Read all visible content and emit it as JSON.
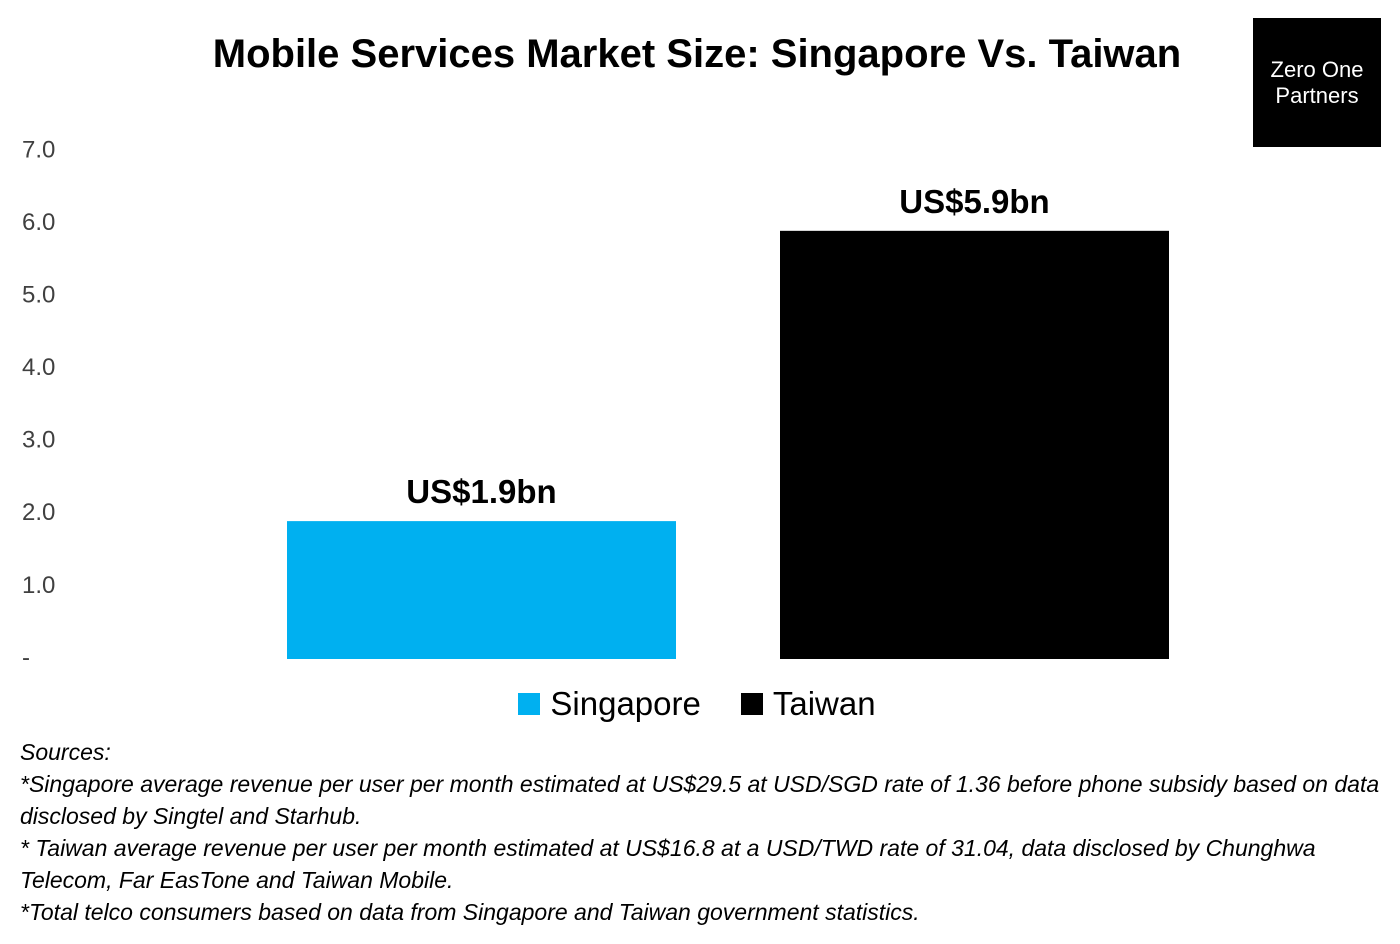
{
  "chart_data": {
    "type": "bar",
    "title": "Mobile Services Market Size: Singapore Vs. Taiwan",
    "categories": [
      "Singapore",
      "Taiwan"
    ],
    "values": [
      1.9,
      5.9
    ],
    "data_labels": [
      "US$1.9bn",
      "US$5.9bn"
    ],
    "colors": [
      "#00B0F0",
      "#000000"
    ],
    "ylim": [
      0,
      7
    ],
    "yticks": [
      0,
      1,
      2,
      3,
      4,
      5,
      6,
      7
    ],
    "ytick_labels": [
      "-",
      "1.0",
      "2.0",
      "3.0",
      "4.0",
      "5.0",
      "6.0",
      "7.0"
    ],
    "xlabel": "",
    "ylabel": "",
    "grid": false,
    "legend": "bottom-center",
    "legend_entries": [
      "Singapore",
      "Taiwan"
    ]
  },
  "logo": {
    "line1": "Zero One",
    "line2": "Partners"
  },
  "notes": {
    "heading": "Sources:",
    "lines": [
      "*Singapore average revenue per user per month estimated at US$29.5 at USD/SGD rate of 1.36 before phone subsidy based on data disclosed by Singtel and Starhub.",
      "* Taiwan average revenue per user per month estimated at US$16.8 at a USD/TWD rate of 31.04, data disclosed by Chunghwa Telecom, Far EasTone and Taiwan Mobile.",
      "*Total telco consumers based on data from Singapore and Taiwan government statistics."
    ]
  }
}
